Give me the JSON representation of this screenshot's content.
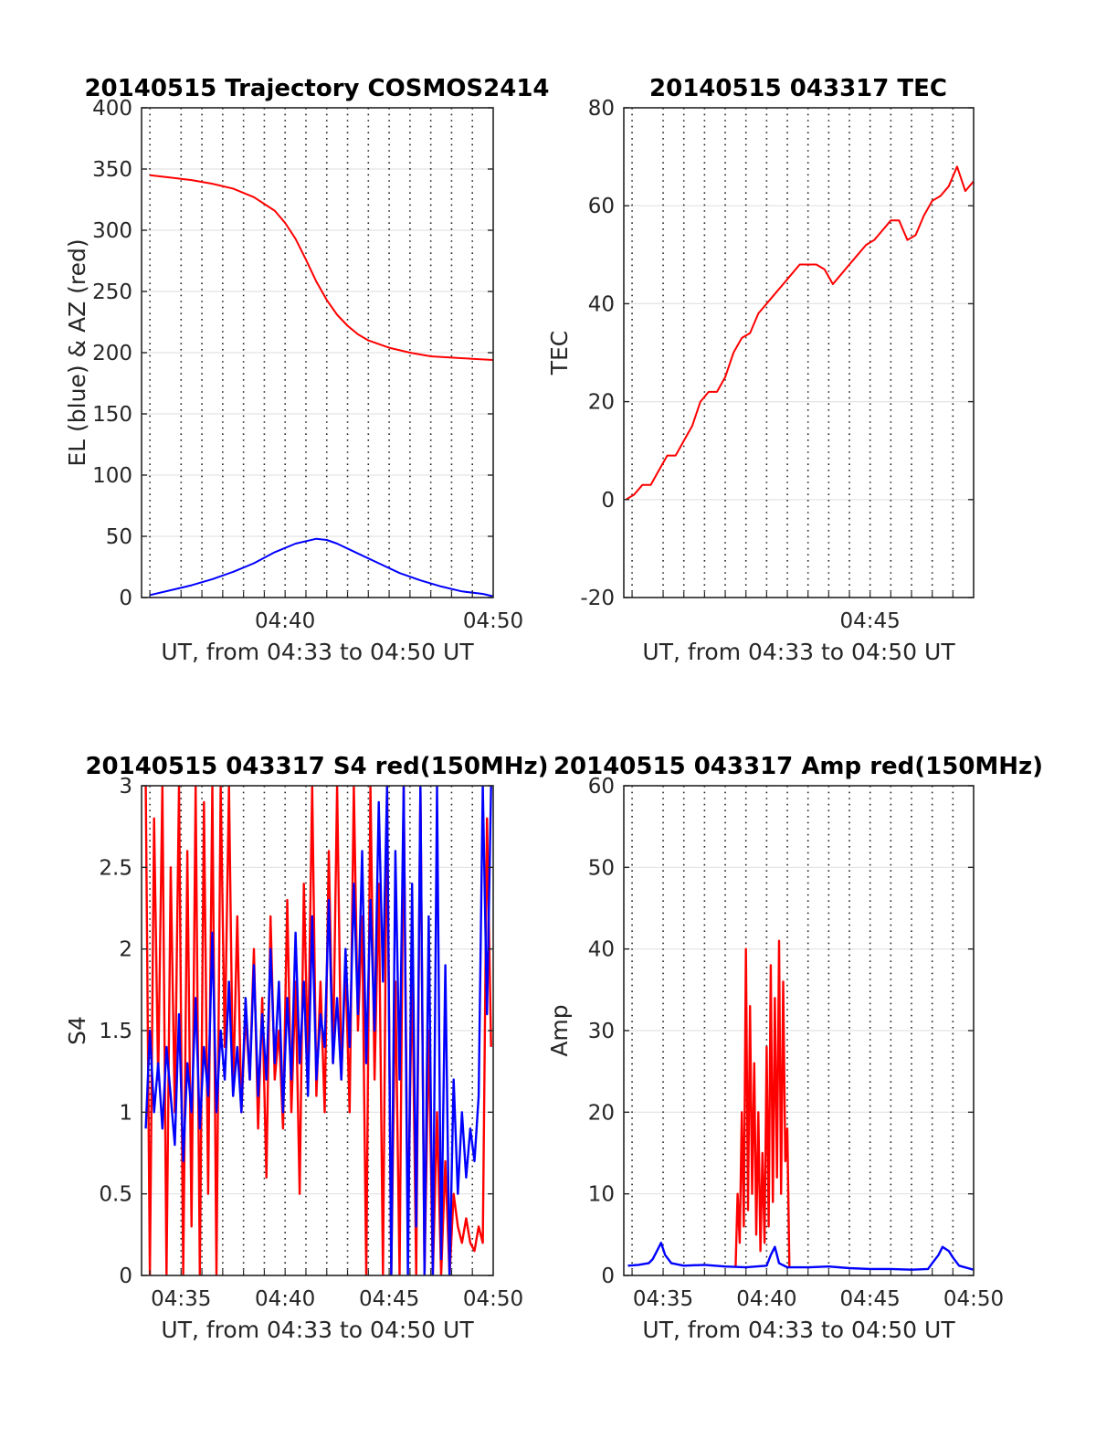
{
  "chart_data": [
    {
      "type": "line",
      "title": "20140515 Trajectory COSMOS2414",
      "xlabel": "UT, from 04:33 to 04:50 UT",
      "ylabel": "EL (blue) & AZ (red)",
      "xlim": [
        33.1,
        50.0
      ],
      "ylim": [
        0,
        400
      ],
      "yticks": [
        0,
        50,
        100,
        150,
        200,
        250,
        300,
        350,
        400
      ],
      "xticks": [
        {
          "value": 40,
          "label": "04:40"
        },
        {
          "value": 50,
          "label": "04:50"
        }
      ],
      "grid_minutes": [
        33.5,
        35,
        36,
        37,
        38,
        39,
        40,
        41,
        42,
        43,
        44,
        45,
        46,
        47,
        48,
        49
      ],
      "series": [
        {
          "color": "#ff0000",
          "x": [
            33.5,
            34.5,
            35.5,
            36.5,
            37.5,
            38.5,
            39.5,
            40.0,
            40.5,
            41.0,
            41.5,
            42.0,
            42.5,
            43.0,
            43.5,
            44.0,
            45.0,
            46.0,
            47.0,
            48.0,
            49.0,
            50.0
          ],
          "y": [
            345,
            343,
            341,
            338,
            334,
            327,
            316,
            306,
            293,
            276,
            258,
            243,
            231,
            222,
            215,
            210,
            204,
            200,
            197,
            196,
            195,
            194
          ]
        },
        {
          "color": "#0000ff",
          "x": [
            33.5,
            34.5,
            35.5,
            36.5,
            37.5,
            38.5,
            39.5,
            40.5,
            41.5,
            42.0,
            42.5,
            43.5,
            44.5,
            45.5,
            46.5,
            47.5,
            48.5,
            49.5,
            50.0
          ],
          "y": [
            2,
            6,
            10,
            15,
            21,
            28,
            37,
            44,
            48,
            47,
            44,
            36,
            28,
            20,
            14,
            9,
            5,
            3,
            1
          ]
        }
      ]
    },
    {
      "type": "line",
      "title": "20140515 043317 TEC",
      "xlabel": "UT, from 04:33 to 04:50 UT",
      "ylabel": "TEC",
      "xlim": [
        33.1,
        50.0
      ],
      "ylim": [
        -20,
        80
      ],
      "yticks": [
        -20,
        0,
        20,
        40,
        60,
        80
      ],
      "xticks": [
        {
          "value": 45,
          "label": "04:45"
        }
      ],
      "grid_minutes": [
        33.5,
        35,
        36,
        37,
        38,
        39,
        40,
        41,
        42,
        43,
        44,
        45,
        46,
        47,
        48,
        49
      ],
      "series": [
        {
          "color": "#ff0000",
          "x": [
            33.2,
            33.6,
            34.0,
            34.4,
            34.8,
            35.2,
            35.6,
            36.0,
            36.4,
            36.8,
            37.2,
            37.6,
            38.0,
            38.4,
            38.8,
            39.2,
            39.6,
            40.0,
            40.4,
            40.8,
            41.2,
            41.6,
            42.0,
            42.4,
            42.8,
            43.2,
            43.6,
            44.0,
            44.4,
            44.8,
            45.2,
            45.6,
            46.0,
            46.4,
            46.8,
            47.2,
            47.6,
            48.0,
            48.4,
            48.8,
            49.2,
            49.6,
            50.0
          ],
          "y": [
            0,
            1,
            3,
            3,
            6,
            9,
            9,
            12,
            15,
            20,
            22,
            22,
            25,
            30,
            33,
            34,
            38,
            40,
            42,
            44,
            46,
            48,
            48,
            48,
            47,
            44,
            46,
            48,
            50,
            52,
            53,
            55,
            57,
            57,
            53,
            54,
            58,
            61,
            62,
            64,
            68,
            63,
            65
          ]
        }
      ]
    },
    {
      "type": "line",
      "title": "20140515 043317 S4 red(150MHz)",
      "xlabel": "UT, from 04:33 to 04:50 UT",
      "ylabel": "S4",
      "xlim": [
        33.1,
        50.0
      ],
      "ylim": [
        0,
        3
      ],
      "yticks": [
        0,
        0.5,
        1,
        1.5,
        2,
        2.5,
        3
      ],
      "xticks": [
        {
          "value": 35,
          "label": "04:35"
        },
        {
          "value": 40,
          "label": "04:40"
        },
        {
          "value": 45,
          "label": "04:45"
        },
        {
          "value": 50,
          "label": "04:50"
        }
      ],
      "grid_minutes": [
        33.5,
        35,
        36,
        37,
        38,
        39,
        40,
        41,
        42,
        43,
        44,
        45,
        46,
        47,
        48,
        49
      ],
      "series": [
        {
          "color": "#ff0000",
          "x": [
            33.3,
            33.5,
            33.7,
            33.9,
            34.1,
            34.3,
            34.5,
            34.7,
            34.9,
            35.1,
            35.3,
            35.5,
            35.7,
            35.9,
            36.1,
            36.3,
            36.5,
            36.7,
            36.9,
            37.1,
            37.3,
            37.5,
            37.7,
            37.9,
            38.1,
            38.3,
            38.5,
            38.7,
            38.9,
            39.1,
            39.3,
            39.5,
            39.7,
            39.9,
            40.1,
            40.3,
            40.5,
            40.7,
            40.9,
            41.1,
            41.3,
            41.5,
            41.7,
            41.9,
            42.1,
            42.3,
            42.5,
            42.7,
            42.9,
            43.1,
            43.3,
            43.5,
            43.7,
            43.9,
            44.1,
            44.3,
            44.5,
            44.7,
            44.9,
            45.1,
            45.3,
            45.5,
            45.7,
            45.9,
            46.1,
            46.3,
            46.5,
            46.7,
            46.9,
            47.1,
            47.3,
            47.5,
            47.7,
            47.9,
            48.1,
            48.3,
            48.5,
            48.7,
            48.9,
            49.1,
            49.3,
            49.5,
            49.7,
            49.9
          ],
          "y": [
            3.0,
            0.0,
            2.8,
            1.2,
            3.0,
            0.0,
            2.5,
            1.0,
            3.0,
            0.0,
            2.6,
            0.3,
            3.0,
            0.0,
            2.9,
            0.5,
            3.0,
            0.0,
            3.0,
            1.4,
            3.0,
            1.1,
            2.2,
            1.0,
            1.6,
            1.2,
            2.0,
            0.9,
            1.7,
            0.6,
            2.2,
            1.2,
            1.5,
            0.9,
            2.3,
            1.0,
            1.8,
            0.5,
            2.4,
            1.3,
            3.0,
            1.1,
            1.8,
            1.0,
            2.6,
            1.3,
            3.0,
            1.2,
            1.9,
            1.0,
            3.0,
            1.5,
            2.2,
            0.0,
            3.0,
            1.2,
            2.4,
            0.0,
            3.0,
            0.0,
            1.8,
            0.0,
            3.0,
            0.2,
            1.9,
            0.0,
            3.0,
            0.0,
            1.5,
            0.0,
            1.0,
            0.0,
            0.7,
            0.0,
            0.5,
            0.3,
            0.2,
            0.35,
            0.2,
            0.15,
            0.3,
            0.2,
            2.8,
            1.4
          ]
        },
        {
          "color": "#0000ff",
          "x": [
            33.3,
            33.5,
            33.7,
            33.9,
            34.1,
            34.3,
            34.5,
            34.7,
            34.9,
            35.1,
            35.3,
            35.5,
            35.7,
            35.9,
            36.1,
            36.3,
            36.5,
            36.7,
            36.9,
            37.1,
            37.3,
            37.5,
            37.7,
            37.9,
            38.1,
            38.3,
            38.5,
            38.7,
            38.9,
            39.1,
            39.3,
            39.5,
            39.7,
            39.9,
            40.1,
            40.3,
            40.5,
            40.7,
            40.9,
            41.1,
            41.3,
            41.5,
            41.7,
            41.9,
            42.1,
            42.3,
            42.5,
            42.7,
            42.9,
            43.1,
            43.3,
            43.5,
            43.7,
            43.9,
            44.1,
            44.3,
            44.5,
            44.7,
            44.9,
            45.1,
            45.3,
            45.5,
            45.7,
            45.9,
            46.1,
            46.3,
            46.5,
            46.7,
            46.9,
            47.1,
            47.3,
            47.5,
            47.7,
            47.9,
            48.1,
            48.3,
            48.5,
            48.7,
            48.9,
            49.1,
            49.3,
            49.5,
            49.7,
            49.9
          ],
          "y": [
            0.9,
            1.5,
            1.0,
            1.3,
            0.9,
            1.4,
            1.1,
            0.8,
            1.6,
            0.7,
            1.3,
            1.0,
            1.7,
            0.9,
            1.4,
            1.1,
            2.1,
            1.0,
            1.5,
            1.2,
            1.8,
            1.1,
            1.4,
            1.0,
            1.7,
            1.2,
            1.9,
            1.1,
            1.6,
            1.2,
            2.0,
            1.3,
            1.8,
            1.0,
            1.7,
            1.2,
            2.1,
            1.3,
            1.8,
            1.1,
            2.2,
            1.2,
            1.6,
            1.4,
            2.3,
            1.3,
            1.7,
            1.2,
            2.0,
            1.4,
            2.4,
            1.6,
            2.6,
            1.3,
            2.3,
            1.5,
            2.9,
            1.8,
            3.0,
            0.0,
            2.6,
            1.2,
            3.0,
            0.0,
            2.4,
            0.3,
            3.0,
            0.0,
            2.2,
            0.0,
            3.0,
            0.1,
            1.9,
            0.0,
            1.2,
            0.5,
            1.0,
            0.6,
            0.9,
            0.7,
            1.1,
            3.0,
            1.6,
            3.0
          ]
        }
      ]
    },
    {
      "type": "line",
      "title": "20140515 043317 Amp red(150MHz)",
      "xlabel": "UT, from 04:33 to 04:50 UT",
      "ylabel": "Amp",
      "xlim": [
        33.1,
        50.0
      ],
      "ylim": [
        0,
        60
      ],
      "yticks": [
        0,
        10,
        20,
        30,
        40,
        50,
        60
      ],
      "xticks": [
        {
          "value": 35,
          "label": "04:35"
        },
        {
          "value": 40,
          "label": "04:40"
        },
        {
          "value": 45,
          "label": "04:45"
        },
        {
          "value": 50,
          "label": "04:50"
        }
      ],
      "grid_minutes": [
        33.5,
        35,
        36,
        37,
        38,
        39,
        40,
        41,
        42,
        43,
        44,
        45,
        46,
        47,
        48,
        49
      ],
      "series": [
        {
          "color": "#ff0000",
          "x": [
            38.5,
            38.6,
            38.7,
            38.8,
            38.9,
            39.0,
            39.1,
            39.2,
            39.3,
            39.4,
            39.5,
            39.6,
            39.7,
            39.8,
            39.9,
            40.0,
            40.1,
            40.2,
            40.3,
            40.4,
            40.5,
            40.6,
            40.7,
            40.8,
            40.9,
            41.0,
            41.1
          ],
          "y": [
            1,
            10,
            4,
            20,
            6,
            40,
            8,
            33,
            10,
            26,
            5,
            20,
            3,
            15,
            4,
            28,
            6,
            38,
            9,
            34,
            12,
            41,
            10,
            36,
            14,
            18,
            1
          ]
        },
        {
          "color": "#0000ff",
          "x": [
            33.3,
            33.8,
            34.3,
            34.5,
            34.7,
            34.9,
            35.1,
            35.4,
            36.0,
            37.0,
            38.0,
            39.0,
            40.0,
            40.2,
            40.4,
            40.6,
            41.0,
            42.0,
            43.0,
            44.0,
            45.0,
            46.0,
            47.0,
            47.8,
            48.0,
            48.3,
            48.5,
            48.8,
            49.0,
            49.3,
            50.0
          ],
          "y": [
            1.2,
            1.3,
            1.5,
            2.0,
            3.0,
            4.0,
            2.5,
            1.5,
            1.2,
            1.3,
            1.1,
            1.0,
            1.2,
            2.5,
            3.5,
            1.5,
            1.0,
            1.0,
            1.1,
            0.9,
            0.8,
            0.8,
            0.7,
            0.8,
            1.5,
            2.5,
            3.5,
            3.0,
            2.2,
            1.2,
            0.7
          ]
        }
      ]
    }
  ]
}
